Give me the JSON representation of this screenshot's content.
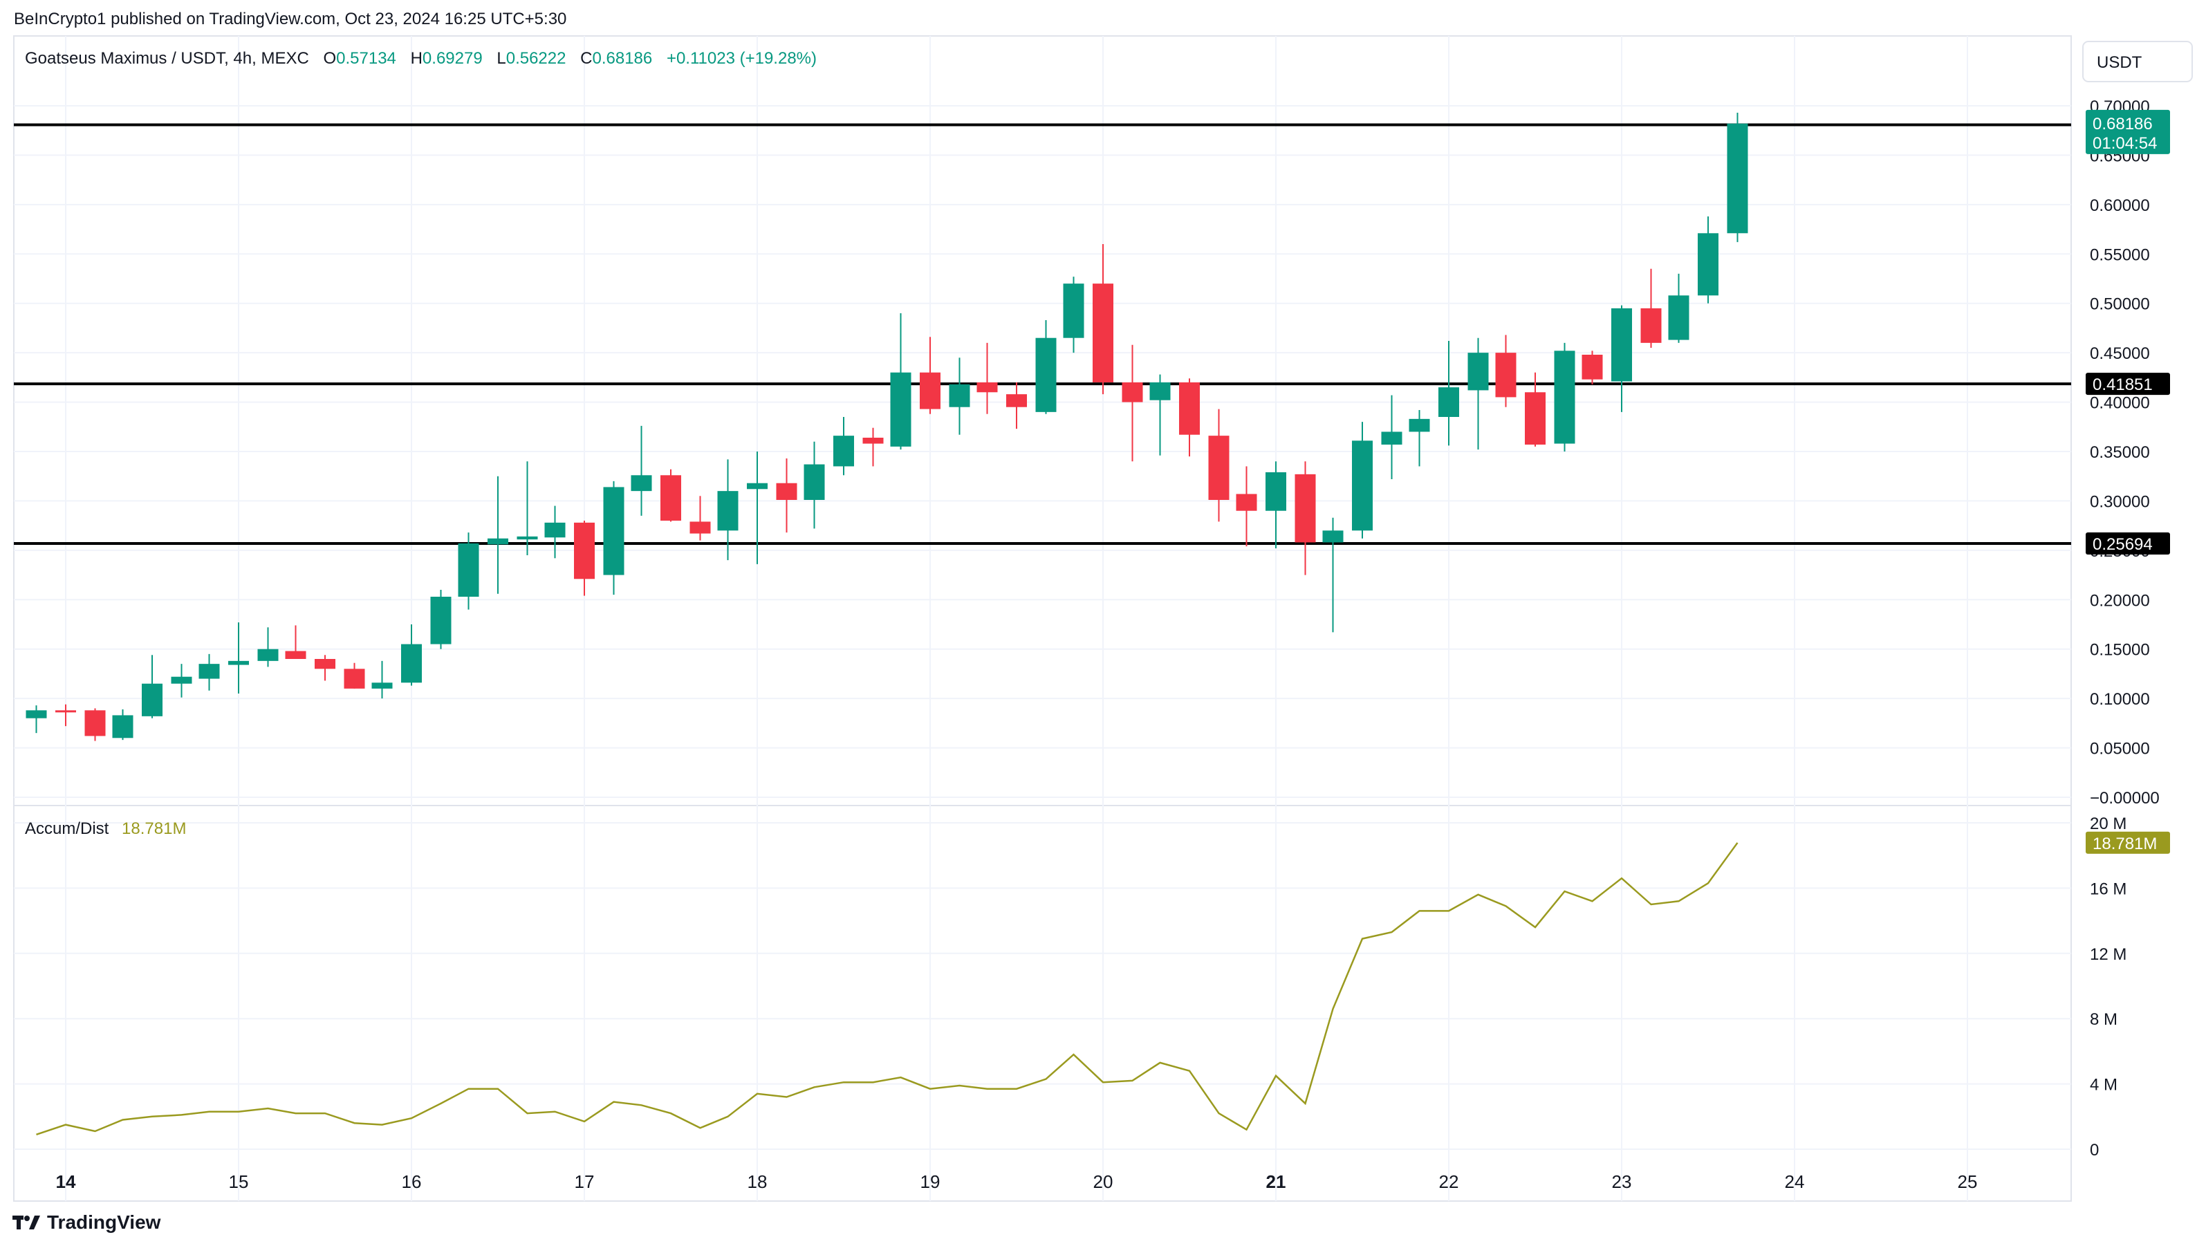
{
  "header": {
    "published": "BeInCrypto1 published on TradingView.com, Oct 23, 2024 16:25 UTC+5:30",
    "symbol": "Goatseus Maximus / USDT, 4h, MEXC",
    "o_label": "O",
    "o_value": "0.57134",
    "h_label": "H",
    "h_value": "0.69279",
    "l_label": "L",
    "l_value": "0.56222",
    "c_label": "C",
    "c_value": "0.68186",
    "change": "+0.11023 (+19.28%)",
    "currency": "USDT"
  },
  "footer": {
    "brand": "TradingView"
  },
  "colors": {
    "up": "#089981",
    "down": "#f23645",
    "ad_line": "#9a9a1f",
    "level": "#000000",
    "grid": "#f0f3fa"
  },
  "chart_data": [
    {
      "type": "candlestick",
      "ylim": [
        0,
        0.7
      ],
      "y_ticks": [
        "0.70000",
        "0.65000",
        "0.60000",
        "0.55000",
        "0.50000",
        "0.45000",
        "0.40000",
        "0.35000",
        "0.30000",
        "0.25000",
        "0.20000",
        "0.15000",
        "0.10000",
        "0.05000",
        "−0.00000"
      ],
      "x_ticks": [
        "14",
        "15",
        "16",
        "17",
        "18",
        "19",
        "20",
        "21",
        "22",
        "23",
        "24",
        "25"
      ],
      "x_ticks_bold": [
        "14",
        "21"
      ],
      "x_range": [
        13.7,
        25.6
      ],
      "candles": [
        {
          "t": 13.83,
          "o": 0.08,
          "h": 0.093,
          "l": 0.065,
          "c": 0.088
        },
        {
          "t": 14.0,
          "o": 0.088,
          "h": 0.094,
          "l": 0.072,
          "c": 0.087
        },
        {
          "t": 14.17,
          "o": 0.088,
          "h": 0.09,
          "l": 0.057,
          "c": 0.062
        },
        {
          "t": 14.33,
          "o": 0.06,
          "h": 0.089,
          "l": 0.058,
          "c": 0.083
        },
        {
          "t": 14.5,
          "o": 0.082,
          "h": 0.144,
          "l": 0.08,
          "c": 0.115
        },
        {
          "t": 14.67,
          "o": 0.115,
          "h": 0.135,
          "l": 0.101,
          "c": 0.122
        },
        {
          "t": 14.83,
          "o": 0.12,
          "h": 0.145,
          "l": 0.108,
          "c": 0.135
        },
        {
          "t": 15.0,
          "o": 0.134,
          "h": 0.177,
          "l": 0.105,
          "c": 0.138
        },
        {
          "t": 15.17,
          "o": 0.138,
          "h": 0.172,
          "l": 0.132,
          "c": 0.15
        },
        {
          "t": 15.33,
          "o": 0.148,
          "h": 0.174,
          "l": 0.14,
          "c": 0.14
        },
        {
          "t": 15.5,
          "o": 0.14,
          "h": 0.144,
          "l": 0.118,
          "c": 0.13
        },
        {
          "t": 15.67,
          "o": 0.13,
          "h": 0.136,
          "l": 0.11,
          "c": 0.11
        },
        {
          "t": 15.83,
          "o": 0.11,
          "h": 0.138,
          "l": 0.1,
          "c": 0.116
        },
        {
          "t": 16.0,
          "o": 0.116,
          "h": 0.175,
          "l": 0.113,
          "c": 0.155
        },
        {
          "t": 16.17,
          "o": 0.155,
          "h": 0.21,
          "l": 0.15,
          "c": 0.203
        },
        {
          "t": 16.33,
          "o": 0.203,
          "h": 0.268,
          "l": 0.19,
          "c": 0.257
        },
        {
          "t": 16.5,
          "o": 0.256,
          "h": 0.325,
          "l": 0.206,
          "c": 0.262
        },
        {
          "t": 16.67,
          "o": 0.261,
          "h": 0.34,
          "l": 0.245,
          "c": 0.264
        },
        {
          "t": 16.83,
          "o": 0.263,
          "h": 0.295,
          "l": 0.242,
          "c": 0.278
        },
        {
          "t": 17.0,
          "o": 0.278,
          "h": 0.28,
          "l": 0.204,
          "c": 0.221
        },
        {
          "t": 17.17,
          "o": 0.225,
          "h": 0.32,
          "l": 0.205,
          "c": 0.314
        },
        {
          "t": 17.33,
          "o": 0.31,
          "h": 0.376,
          "l": 0.285,
          "c": 0.326
        },
        {
          "t": 17.5,
          "o": 0.326,
          "h": 0.332,
          "l": 0.279,
          "c": 0.28
        },
        {
          "t": 17.67,
          "o": 0.279,
          "h": 0.305,
          "l": 0.26,
          "c": 0.267
        },
        {
          "t": 17.83,
          "o": 0.27,
          "h": 0.342,
          "l": 0.24,
          "c": 0.31
        },
        {
          "t": 18.0,
          "o": 0.312,
          "h": 0.35,
          "l": 0.236,
          "c": 0.318
        },
        {
          "t": 18.17,
          "o": 0.318,
          "h": 0.343,
          "l": 0.268,
          "c": 0.301
        },
        {
          "t": 18.33,
          "o": 0.301,
          "h": 0.36,
          "l": 0.272,
          "c": 0.337
        },
        {
          "t": 18.5,
          "o": 0.335,
          "h": 0.385,
          "l": 0.326,
          "c": 0.366
        },
        {
          "t": 18.67,
          "o": 0.364,
          "h": 0.374,
          "l": 0.335,
          "c": 0.358
        },
        {
          "t": 18.83,
          "o": 0.355,
          "h": 0.49,
          "l": 0.352,
          "c": 0.43
        },
        {
          "t": 19.0,
          "o": 0.43,
          "h": 0.466,
          "l": 0.388,
          "c": 0.393
        },
        {
          "t": 19.17,
          "o": 0.395,
          "h": 0.445,
          "l": 0.367,
          "c": 0.418
        },
        {
          "t": 19.33,
          "o": 0.42,
          "h": 0.46,
          "l": 0.388,
          "c": 0.41
        },
        {
          "t": 19.5,
          "o": 0.408,
          "h": 0.42,
          "l": 0.373,
          "c": 0.395
        },
        {
          "t": 19.67,
          "o": 0.39,
          "h": 0.483,
          "l": 0.388,
          "c": 0.465
        },
        {
          "t": 19.83,
          "o": 0.465,
          "h": 0.527,
          "l": 0.45,
          "c": 0.52
        },
        {
          "t": 20.0,
          "o": 0.52,
          "h": 0.56,
          "l": 0.408,
          "c": 0.42
        },
        {
          "t": 20.17,
          "o": 0.42,
          "h": 0.458,
          "l": 0.34,
          "c": 0.4
        },
        {
          "t": 20.33,
          "o": 0.402,
          "h": 0.428,
          "l": 0.346,
          "c": 0.42
        },
        {
          "t": 20.5,
          "o": 0.42,
          "h": 0.424,
          "l": 0.345,
          "c": 0.367
        },
        {
          "t": 20.67,
          "o": 0.366,
          "h": 0.393,
          "l": 0.279,
          "c": 0.301
        },
        {
          "t": 20.83,
          "o": 0.307,
          "h": 0.335,
          "l": 0.254,
          "c": 0.29
        },
        {
          "t": 21.0,
          "o": 0.29,
          "h": 0.34,
          "l": 0.252,
          "c": 0.329
        },
        {
          "t": 21.17,
          "o": 0.327,
          "h": 0.34,
          "l": 0.225,
          "c": 0.258
        },
        {
          "t": 21.33,
          "o": 0.258,
          "h": 0.283,
          "l": 0.167,
          "c": 0.27
        },
        {
          "t": 21.5,
          "o": 0.27,
          "h": 0.38,
          "l": 0.262,
          "c": 0.361
        },
        {
          "t": 21.67,
          "o": 0.357,
          "h": 0.407,
          "l": 0.322,
          "c": 0.37
        },
        {
          "t": 21.83,
          "o": 0.37,
          "h": 0.392,
          "l": 0.335,
          "c": 0.383
        },
        {
          "t": 22.0,
          "o": 0.385,
          "h": 0.462,
          "l": 0.356,
          "c": 0.415
        },
        {
          "t": 22.17,
          "o": 0.412,
          "h": 0.465,
          "l": 0.352,
          "c": 0.45
        },
        {
          "t": 22.33,
          "o": 0.45,
          "h": 0.468,
          "l": 0.395,
          "c": 0.405
        },
        {
          "t": 22.5,
          "o": 0.41,
          "h": 0.43,
          "l": 0.355,
          "c": 0.357
        },
        {
          "t": 22.67,
          "o": 0.358,
          "h": 0.46,
          "l": 0.35,
          "c": 0.452
        },
        {
          "t": 22.83,
          "o": 0.448,
          "h": 0.452,
          "l": 0.418,
          "c": 0.423
        },
        {
          "t": 23.0,
          "o": 0.421,
          "h": 0.498,
          "l": 0.39,
          "c": 0.495
        },
        {
          "t": 23.17,
          "o": 0.495,
          "h": 0.535,
          "l": 0.455,
          "c": 0.46
        },
        {
          "t": 23.33,
          "o": 0.463,
          "h": 0.53,
          "l": 0.46,
          "c": 0.508
        },
        {
          "t": 23.5,
          "o": 0.508,
          "h": 0.588,
          "l": 0.5,
          "c": 0.571
        },
        {
          "t": 23.67,
          "o": 0.571,
          "h": 0.693,
          "l": 0.562,
          "c": 0.682
        }
      ],
      "levels": [
        {
          "value": 0.68072,
          "label": "0.68072"
        },
        {
          "value": 0.41851,
          "label": "0.41851"
        },
        {
          "value": 0.25694,
          "label": "0.25694"
        }
      ],
      "last_price": {
        "value": 0.68186,
        "label": "0.68186",
        "countdown": "01:04:54"
      }
    },
    {
      "type": "line",
      "title": "Accum/Dist",
      "last_value_label": "18.781M",
      "ylim": [
        0,
        20
      ],
      "y_ticks": [
        "20 M",
        "16 M",
        "12 M",
        "8 M",
        "4 M",
        "0"
      ],
      "y_tick_values": [
        20,
        16,
        12,
        8,
        4,
        0
      ],
      "last_value": 18.781,
      "x": [
        13.83,
        14.0,
        14.17,
        14.33,
        14.5,
        14.67,
        14.83,
        15.0,
        15.17,
        15.33,
        15.5,
        15.67,
        15.83,
        16.0,
        16.17,
        16.33,
        16.5,
        16.67,
        16.83,
        17.0,
        17.17,
        17.33,
        17.5,
        17.67,
        17.83,
        18.0,
        18.17,
        18.33,
        18.5,
        18.67,
        18.83,
        19.0,
        19.17,
        19.33,
        19.5,
        19.67,
        19.83,
        20.0,
        20.17,
        20.33,
        20.5,
        20.67,
        20.83,
        21.0,
        21.17,
        21.33,
        21.5,
        21.67,
        21.83,
        22.0,
        22.17,
        22.33,
        22.5,
        22.67,
        22.83,
        23.0,
        23.17,
        23.33,
        23.5,
        23.67
      ],
      "values": [
        0.9,
        1.5,
        1.1,
        1.8,
        2.0,
        2.1,
        2.3,
        2.3,
        2.5,
        2.2,
        2.2,
        1.6,
        1.5,
        1.9,
        2.8,
        3.7,
        3.7,
        2.2,
        2.3,
        1.7,
        2.9,
        2.7,
        2.2,
        1.3,
        2.0,
        3.4,
        3.2,
        3.8,
        4.1,
        4.1,
        4.4,
        3.7,
        3.9,
        3.7,
        3.7,
        4.3,
        5.8,
        4.1,
        4.2,
        5.3,
        4.8,
        2.2,
        1.2,
        4.5,
        2.8,
        8.6,
        12.9,
        13.3,
        14.6,
        14.6,
        15.6,
        14.9,
        13.6,
        15.8,
        15.2,
        16.6,
        15.0,
        15.2,
        16.3,
        18.781
      ]
    }
  ]
}
